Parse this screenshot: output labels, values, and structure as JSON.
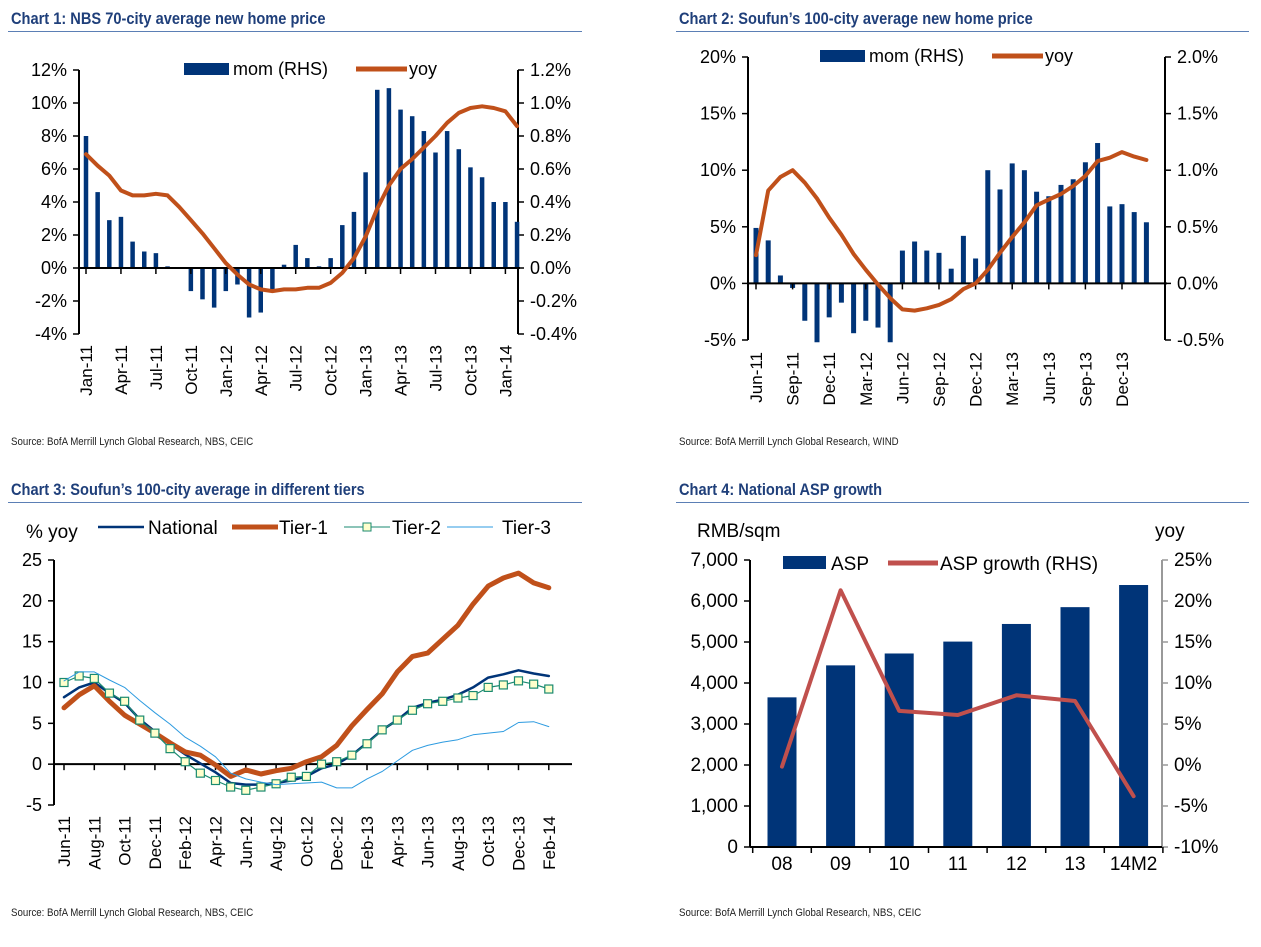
{
  "charts": {
    "c1": {
      "title": "Chart 1: NBS 70-city average new home price",
      "source": "Source: BofA Merrill Lynch Global Research, NBS, CEIC"
    },
    "c2": {
      "title": "Chart 2: Soufun’s 100-city average new home price",
      "source": "Source: BofA Merrill Lynch Global Research, WIND"
    },
    "c3": {
      "title": "Chart 3: Soufun’s 100-city average in different tiers",
      "source": "Source: BofA Merrill Lynch Global Research, NBS, CEIC"
    },
    "c4": {
      "title": "Chart 4: National ASP growth",
      "source": "Source: BofA Merrill Lynch Global Research, NBS, CEIC"
    }
  },
  "chart_data": [
    {
      "id": "c1",
      "type": "bar+line",
      "title": "Chart 1: NBS 70-city average new home price",
      "x": [
        "Jan-11",
        "Feb-11",
        "Mar-11",
        "Apr-11",
        "May-11",
        "Jun-11",
        "Jul-11",
        "Aug-11",
        "Sep-11",
        "Oct-11",
        "Nov-11",
        "Dec-11",
        "Jan-12",
        "Feb-12",
        "Mar-12",
        "Apr-12",
        "May-12",
        "Jun-12",
        "Jul-12",
        "Aug-12",
        "Sep-12",
        "Oct-12",
        "Nov-12",
        "Dec-12",
        "Jan-13",
        "Feb-13",
        "Mar-13",
        "Apr-13",
        "May-13",
        "Jun-13",
        "Jul-13",
        "Aug-13",
        "Sep-13",
        "Oct-13",
        "Nov-13",
        "Dec-13",
        "Jan-14",
        "Feb-14"
      ],
      "xtick_labels": [
        "Jan-11",
        "Apr-11",
        "Jul-11",
        "Oct-11",
        "Jan-12",
        "Apr-12",
        "Jul-12",
        "Oct-12",
        "Jan-13",
        "Apr-13",
        "Jul-13",
        "Oct-13",
        "Jan-14"
      ],
      "xtick_every": 3,
      "series": [
        {
          "name": "mom (RHS)",
          "type": "bar",
          "axis": "right",
          "color": "#003478",
          "values": [
            0.8,
            0.46,
            0.29,
            0.31,
            0.16,
            0.1,
            0.09,
            0.01,
            0.0,
            -0.14,
            -0.19,
            -0.24,
            -0.14,
            -0.1,
            -0.3,
            -0.27,
            -0.14,
            0.02,
            0.14,
            0.06,
            0.01,
            0.06,
            0.26,
            0.34,
            0.58,
            1.08,
            1.09,
            0.96,
            0.92,
            0.83,
            0.7,
            0.83,
            0.72,
            0.61,
            0.55,
            0.4,
            0.4,
            0.28
          ]
        },
        {
          "name": "yoy",
          "type": "line",
          "axis": "left",
          "color": "#c0501a",
          "values": [
            6.9,
            6.2,
            5.6,
            4.7,
            4.4,
            4.4,
            4.5,
            4.4,
            3.7,
            2.9,
            2.1,
            1.2,
            0.3,
            -0.4,
            -1.0,
            -1.3,
            -1.4,
            -1.3,
            -1.3,
            -1.2,
            -1.2,
            -0.9,
            -0.3,
            0.6,
            1.9,
            3.6,
            5.0,
            6.0,
            6.6,
            7.3,
            8.0,
            8.8,
            9.4,
            9.7,
            9.8,
            9.7,
            9.5,
            8.6
          ]
        }
      ],
      "yleft": {
        "min": -4,
        "max": 12,
        "step": 2,
        "format": "pct0"
      },
      "yright": {
        "min": -0.4,
        "max": 1.2,
        "step": 0.2,
        "format": "pct1"
      },
      "legend": "top-center"
    },
    {
      "id": "c2",
      "type": "bar+line",
      "title": "Chart 2: Soufun’s 100-city average new home price",
      "x": [
        "Jun-11",
        "Jul-11",
        "Aug-11",
        "Sep-11",
        "Oct-11",
        "Nov-11",
        "Dec-11",
        "Jan-12",
        "Feb-12",
        "Mar-12",
        "Apr-12",
        "May-12",
        "Jun-12",
        "Jul-12",
        "Aug-12",
        "Sep-12",
        "Oct-12",
        "Nov-12",
        "Dec-12",
        "Jan-13",
        "Feb-13",
        "Mar-13",
        "Apr-13",
        "May-13",
        "Jun-13",
        "Jul-13",
        "Aug-13",
        "Sep-13",
        "Oct-13",
        "Nov-13",
        "Dec-13",
        "Jan-14",
        "Feb-14"
      ],
      "xtick_labels": [
        "Jun-11",
        "Sep-11",
        "Dec-11",
        "Mar-12",
        "Jun-12",
        "Sep-12",
        "Dec-12",
        "Mar-13",
        "Jun-13",
        "Sep-13",
        "Dec-13"
      ],
      "xtick_every": 3,
      "series": [
        {
          "name": "mom (RHS)",
          "type": "bar",
          "axis": "right",
          "color": "#003478",
          "values": [
            0.49,
            0.38,
            0.07,
            -0.04,
            -0.33,
            -0.52,
            -0.3,
            -0.17,
            -0.44,
            -0.33,
            -0.39,
            -0.52,
            0.29,
            0.37,
            0.29,
            0.27,
            0.13,
            0.42,
            0.22,
            1.0,
            0.83,
            1.06,
            1.0,
            0.81,
            0.77,
            0.87,
            0.92,
            1.07,
            1.24,
            0.68,
            0.7,
            0.63,
            0.54
          ]
        },
        {
          "name": "yoy",
          "type": "line",
          "axis": "left",
          "color": "#c0501a",
          "values": [
            2.5,
            8.2,
            9.4,
            10.0,
            8.9,
            7.5,
            5.8,
            4.3,
            2.6,
            1.2,
            -0.1,
            -1.3,
            -2.3,
            -2.4,
            -2.2,
            -1.9,
            -1.4,
            -0.5,
            0.0,
            1.2,
            2.7,
            4.1,
            5.4,
            6.9,
            7.4,
            7.9,
            8.6,
            9.5,
            10.8,
            11.1,
            11.6,
            11.2,
            10.9
          ]
        }
      ],
      "yleft": {
        "min": -5,
        "max": 20,
        "step": 5,
        "format": "pct0"
      },
      "yright": {
        "min": -0.5,
        "max": 2.0,
        "step": 0.5,
        "format": "pct1"
      },
      "legend": "top-center"
    },
    {
      "id": "c3",
      "type": "line",
      "title": "Chart 3: Soufun’s 100-city average in different tiers",
      "ylabel": "% yoy",
      "x": [
        "Jun-11",
        "Jul-11",
        "Aug-11",
        "Sep-11",
        "Oct-11",
        "Nov-11",
        "Dec-11",
        "Jan-12",
        "Feb-12",
        "Mar-12",
        "Apr-12",
        "May-12",
        "Jun-12",
        "Jul-12",
        "Aug-12",
        "Sep-12",
        "Oct-12",
        "Nov-12",
        "Dec-12",
        "Jan-13",
        "Feb-13",
        "Mar-13",
        "Apr-13",
        "May-13",
        "Jun-13",
        "Jul-13",
        "Aug-13",
        "Sep-13",
        "Oct-13",
        "Nov-13",
        "Dec-13",
        "Jan-14",
        "Feb-14"
      ],
      "xtick_labels": [
        "Jun-11",
        "Aug-11",
        "Oct-11",
        "Dec-11",
        "Feb-12",
        "Apr-12",
        "Jun-12",
        "Aug-12",
        "Oct-12",
        "Dec-12",
        "Feb-13",
        "Apr-13",
        "Jun-13",
        "Aug-13",
        "Oct-13",
        "Dec-13",
        "Feb-14"
      ],
      "xtick_every": 2,
      "series": [
        {
          "name": "National",
          "color": "#003478",
          "width": 2.5,
          "marker": "none",
          "values": [
            8.2,
            9.4,
            10.0,
            8.7,
            7.5,
            5.5,
            4.0,
            2.5,
            1.2,
            0.1,
            -1.0,
            -2.3,
            -2.5,
            -2.5,
            -2.3,
            -2.0,
            -1.5,
            -0.5,
            0.0,
            1.1,
            2.6,
            4.2,
            5.4,
            6.9,
            7.5,
            7.9,
            8.5,
            9.4,
            10.6,
            11.0,
            11.5,
            11.1,
            10.8
          ]
        },
        {
          "name": "Tier-1",
          "color": "#c0501a",
          "width": 5,
          "marker": "none",
          "values": [
            6.9,
            8.5,
            9.6,
            7.7,
            6.0,
            4.9,
            3.8,
            2.6,
            1.5,
            1.1,
            -0.1,
            -1.5,
            -0.7,
            -1.2,
            -0.8,
            -0.5,
            0.3,
            0.9,
            2.3,
            4.7,
            6.7,
            8.6,
            11.3,
            13.2,
            13.6,
            15.3,
            17.0,
            19.6,
            21.8,
            22.8,
            23.4,
            22.2,
            21.6
          ]
        },
        {
          "name": "Tier-2",
          "color": "#1a8a70",
          "width": 1.2,
          "marker": "square",
          "marker_fill": "#ffffcc",
          "values": [
            10.0,
            10.8,
            10.5,
            8.7,
            7.7,
            5.4,
            3.8,
            1.9,
            0.3,
            -1.1,
            -2.0,
            -2.8,
            -3.2,
            -2.8,
            -2.4,
            -1.6,
            -1.5,
            0.0,
            0.3,
            1.1,
            2.5,
            4.2,
            5.4,
            6.6,
            7.4,
            7.7,
            8.1,
            8.4,
            9.4,
            9.7,
            10.2,
            9.8,
            9.2
          ]
        },
        {
          "name": "Tier-3",
          "color": "#2d9be0",
          "width": 1,
          "marker": "none",
          "values": [
            10.2,
            11.3,
            11.3,
            10.3,
            9.4,
            7.8,
            6.3,
            4.9,
            3.3,
            2.2,
            0.9,
            -1.1,
            -1.8,
            -2.2,
            -2.5,
            -2.4,
            -2.3,
            -2.2,
            -2.9,
            -2.9,
            -1.8,
            -0.9,
            0.4,
            1.7,
            2.3,
            2.7,
            3.0,
            3.6,
            3.8,
            4.0,
            5.1,
            5.2,
            4.6
          ]
        }
      ],
      "yleft": {
        "min": -5,
        "max": 25,
        "step": 5,
        "format": "num"
      },
      "legend": "top"
    },
    {
      "id": "c4",
      "type": "bar+line",
      "title": "Chart 4: National ASP growth",
      "ylabel_left": "RMB/sqm",
      "ylabel_right": "yoy",
      "x": [
        "08",
        "09",
        "10",
        "11",
        "12",
        "13",
        "14M2"
      ],
      "series": [
        {
          "name": "ASP",
          "type": "bar",
          "axis": "left",
          "color": "#003478",
          "values": [
            3650,
            4430,
            4720,
            5010,
            5440,
            5850,
            6390
          ]
        },
        {
          "name": "ASP growth (RHS)",
          "type": "line",
          "axis": "right",
          "color": "#c0504d",
          "values": [
            -0.2,
            21.3,
            6.6,
            6.1,
            8.5,
            7.8,
            -3.8
          ]
        }
      ],
      "yleft": {
        "min": 0,
        "max": 7000,
        "step": 1000,
        "format": "thousands"
      },
      "yright": {
        "min": -10,
        "max": 25,
        "step": 5,
        "format": "pct0"
      },
      "legend": "top-center"
    }
  ]
}
